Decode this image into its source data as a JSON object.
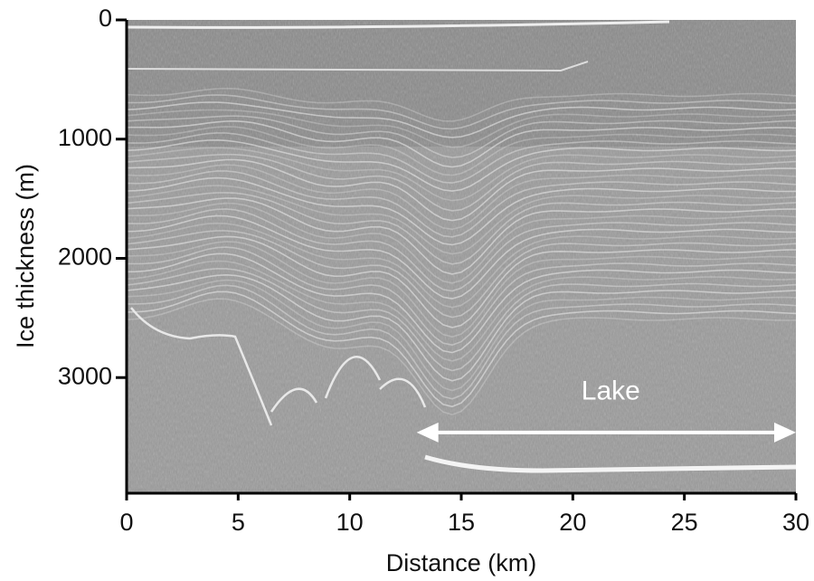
{
  "chart_data": {
    "type": "radargram",
    "x_label": "Distance (km)",
    "y_label": "Ice thickness (m)",
    "xlim": [
      0,
      30
    ],
    "xticks": [
      0,
      5,
      10,
      15,
      20,
      25,
      30
    ],
    "ylim": [
      0,
      3970
    ],
    "yticks": [
      0,
      1000,
      2000,
      3000
    ],
    "y_inverted": true,
    "annotations": [
      {
        "text": "Lake",
        "x_start": 13,
        "x_end": 30,
        "y": 3460
      }
    ]
  }
}
